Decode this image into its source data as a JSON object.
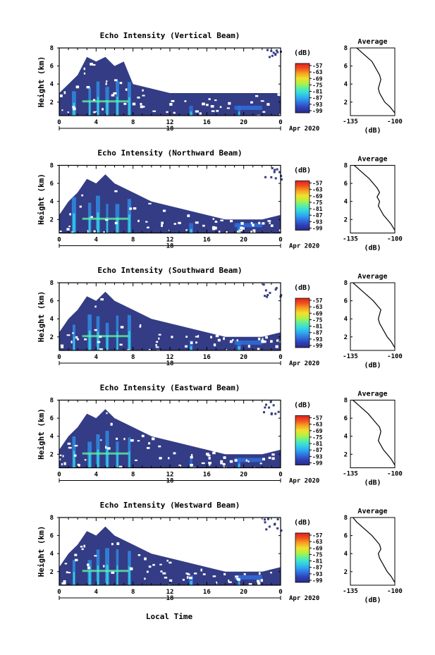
{
  "colors": {
    "background_echo": "#333c84",
    "colorbar_stops": [
      "#2a2a8c",
      "#2f3fb0",
      "#2f6fe0",
      "#2fa8f0",
      "#35d8e0",
      "#5cf0a0",
      "#b8f040",
      "#f0e030",
      "#f8a020",
      "#f05020",
      "#e02020"
    ]
  },
  "x_axis_label": "Local Time",
  "date_label": "Apr 2020",
  "day_label": "18",
  "time_ticks": [
    "0",
    "4",
    "8",
    "12",
    "16",
    "20",
    "0"
  ],
  "height_ticks": [
    "2",
    "4",
    "6",
    "8"
  ],
  "ylabel": "Height (km)",
  "colorbar": {
    "unit": "(dB)",
    "ticks": [
      "-57",
      "-63",
      "-69",
      "-75",
      "-81",
      "-87",
      "-93",
      "-99"
    ]
  },
  "average": {
    "title": "Average",
    "xlabel": "(dB)",
    "xticks": [
      "-135",
      "-100"
    ]
  },
  "chart_data": [
    {
      "type": "heatmap",
      "title": "Echo Intensity (Vertical Beam)",
      "xlabel": "Local Time",
      "ylabel": "Height (km)",
      "xlim": [
        0,
        24
      ],
      "ylim": [
        0.5,
        8
      ],
      "color_range_db": [
        -99,
        -57
      ],
      "cloud_top_km": [
        [
          0,
          3
        ],
        [
          1,
          4
        ],
        [
          2,
          5
        ],
        [
          3,
          7
        ],
        [
          4,
          6.5
        ],
        [
          5,
          7
        ],
        [
          6,
          6
        ],
        [
          7,
          6.5
        ],
        [
          8,
          4
        ],
        [
          10,
          3.5
        ],
        [
          12,
          3
        ],
        [
          14,
          3
        ],
        [
          16,
          3
        ],
        [
          18,
          3
        ],
        [
          20,
          3
        ],
        [
          22,
          3
        ],
        [
          24,
          3
        ]
      ],
      "avg_profile": {
        "height_km": [
          0.8,
          1.5,
          2,
          2.5,
          3,
          3.5,
          4,
          4.5,
          5,
          5.5,
          6,
          6.5,
          7,
          7.5,
          8
        ],
        "db": [
          -100,
          -104,
          -108,
          -110,
          -112,
          -113,
          -112,
          -111,
          -112,
          -114,
          -116,
          -118,
          -122,
          -126,
          -130
        ]
      }
    },
    {
      "type": "heatmap",
      "title": "Echo Intensity (Northward Beam)",
      "xlabel": "Local Time",
      "ylabel": "Height (km)",
      "xlim": [
        0,
        24
      ],
      "ylim": [
        0.5,
        8
      ],
      "color_range_db": [
        -99,
        -57
      ],
      "cloud_top_km": [
        [
          0,
          2.5
        ],
        [
          1,
          4
        ],
        [
          2,
          5
        ],
        [
          3,
          6.5
        ],
        [
          4,
          6
        ],
        [
          5,
          7
        ],
        [
          6,
          6
        ],
        [
          7,
          5.5
        ],
        [
          8,
          5
        ],
        [
          10,
          4
        ],
        [
          12,
          3.5
        ],
        [
          14,
          3
        ],
        [
          16,
          2.5
        ],
        [
          18,
          2
        ],
        [
          20,
          2
        ],
        [
          22,
          2
        ],
        [
          24,
          2.5
        ]
      ],
      "avg_profile": {
        "height_km": [
          0.8,
          1.5,
          2,
          2.5,
          3,
          3.5,
          4,
          4.5,
          5,
          5.5,
          6,
          6.5,
          7,
          7.5,
          8
        ],
        "db": [
          -100,
          -103,
          -106,
          -109,
          -111,
          -113,
          -112,
          -114,
          -112,
          -114,
          -117,
          -120,
          -124,
          -128,
          -132
        ]
      }
    },
    {
      "type": "heatmap",
      "title": "Echo Intensity (Southward Beam)",
      "xlabel": "Local Time",
      "ylabel": "Height (km)",
      "xlim": [
        0,
        24
      ],
      "ylim": [
        0.5,
        8
      ],
      "color_range_db": [
        -99,
        -57
      ],
      "cloud_top_km": [
        [
          0,
          2.5
        ],
        [
          1,
          4
        ],
        [
          2,
          5
        ],
        [
          3,
          6.5
        ],
        [
          4,
          6
        ],
        [
          5,
          7
        ],
        [
          6,
          6
        ],
        [
          7,
          5.5
        ],
        [
          8,
          5
        ],
        [
          10,
          4
        ],
        [
          12,
          3.5
        ],
        [
          14,
          3
        ],
        [
          16,
          2.5
        ],
        [
          18,
          2
        ],
        [
          20,
          2
        ],
        [
          22,
          2
        ],
        [
          24,
          2.5
        ]
      ],
      "avg_profile": {
        "height_km": [
          0.8,
          1.5,
          2,
          2.5,
          3,
          3.5,
          4,
          4.5,
          5,
          5.5,
          6,
          6.5,
          7,
          7.5,
          8
        ],
        "db": [
          -100,
          -103,
          -106,
          -108,
          -110,
          -112,
          -113,
          -112,
          -111,
          -114,
          -117,
          -121,
          -125,
          -129,
          -133
        ]
      }
    },
    {
      "type": "heatmap",
      "title": "Echo Intensity (Eastward Beam)",
      "xlabel": "Local Time",
      "ylabel": "Height (km)",
      "xlim": [
        0,
        24
      ],
      "ylim": [
        0.5,
        8
      ],
      "color_range_db": [
        -99,
        -57
      ],
      "cloud_top_km": [
        [
          0,
          2.5
        ],
        [
          1,
          4
        ],
        [
          2,
          5
        ],
        [
          3,
          6.5
        ],
        [
          4,
          6
        ],
        [
          5,
          7
        ],
        [
          6,
          6
        ],
        [
          7,
          5.5
        ],
        [
          8,
          5
        ],
        [
          10,
          4
        ],
        [
          12,
          3.5
        ],
        [
          14,
          3
        ],
        [
          16,
          2.5
        ],
        [
          18,
          2
        ],
        [
          20,
          2
        ],
        [
          22,
          2
        ],
        [
          24,
          2.5
        ]
      ],
      "avg_profile": {
        "height_km": [
          0.8,
          1.5,
          2,
          2.5,
          3,
          3.5,
          4,
          4.5,
          5,
          5.5,
          6,
          6.5,
          7,
          7.5,
          8
        ],
        "db": [
          -100,
          -103,
          -106,
          -109,
          -111,
          -113,
          -112,
          -111,
          -112,
          -115,
          -118,
          -121,
          -125,
          -129,
          -133
        ]
      }
    },
    {
      "type": "heatmap",
      "title": "Echo Intensity (Westward Beam)",
      "xlabel": "Local Time",
      "ylabel": "Height (km)",
      "xlim": [
        0,
        24
      ],
      "ylim": [
        0.5,
        8
      ],
      "color_range_db": [
        -99,
        -57
      ],
      "cloud_top_km": [
        [
          0,
          2.5
        ],
        [
          1,
          4
        ],
        [
          2,
          5
        ],
        [
          3,
          6.5
        ],
        [
          4,
          6
        ],
        [
          5,
          7
        ],
        [
          6,
          6
        ],
        [
          7,
          5.5
        ],
        [
          8,
          5
        ],
        [
          10,
          4
        ],
        [
          12,
          3.5
        ],
        [
          14,
          3
        ],
        [
          16,
          2.5
        ],
        [
          18,
          2
        ],
        [
          20,
          2
        ],
        [
          22,
          2
        ],
        [
          24,
          2.5
        ]
      ],
      "avg_profile": {
        "height_km": [
          0.8,
          1.5,
          2,
          2.5,
          3,
          3.5,
          4,
          4.5,
          5,
          5.5,
          6,
          6.5,
          7,
          7.5,
          8
        ],
        "db": [
          -100,
          -103,
          -106,
          -108,
          -110,
          -112,
          -113,
          -111,
          -112,
          -115,
          -118,
          -122,
          -126,
          -130,
          -133
        ]
      }
    }
  ]
}
